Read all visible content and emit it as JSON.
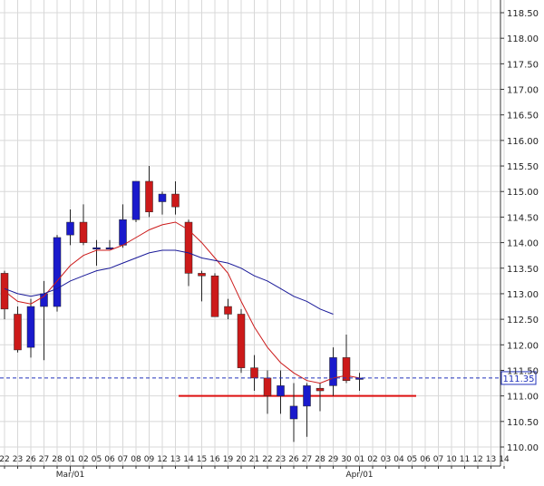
{
  "chart_data": {
    "type": "candlestick",
    "ylim": [
      110.0,
      118.75
    ],
    "y_ticks": [
      "110.00",
      "110.50",
      "111.00",
      "111.50",
      "112.00",
      "112.50",
      "113.00",
      "113.50",
      "114.00",
      "114.50",
      "115.00",
      "115.50",
      "116.00",
      "116.50",
      "117.00",
      "117.50",
      "118.00",
      "118.50"
    ],
    "x_ticks": [
      "22",
      "23",
      "26",
      "27",
      "28",
      "01",
      "02",
      "05",
      "06",
      "07",
      "08",
      "09",
      "12",
      "13",
      "14",
      "15",
      "16",
      "19",
      "20",
      "21",
      "22",
      "23",
      "26",
      "27",
      "28",
      "29",
      "30",
      "01",
      "02",
      "03",
      "04",
      "05",
      "06",
      "07",
      "10",
      "11",
      "12",
      "13",
      "14"
    ],
    "month_labels": [
      "Mar/01",
      "Apr/01"
    ],
    "last_price": "111.35",
    "support_level": 111.0,
    "candles": [
      {
        "date": "Feb 22",
        "open": 113.4,
        "high": 113.45,
        "low": 112.5,
        "close": 112.7
      },
      {
        "date": "Feb 23",
        "open": 112.6,
        "high": 112.75,
        "low": 111.85,
        "close": 111.9
      },
      {
        "date": "Feb 26",
        "open": 111.95,
        "high": 112.9,
        "low": 111.75,
        "close": 112.75
      },
      {
        "date": "Feb 27",
        "open": 112.75,
        "high": 113.25,
        "low": 111.7,
        "close": 113.0
      },
      {
        "date": "Feb 28",
        "open": 112.75,
        "high": 114.15,
        "low": 112.65,
        "close": 114.1
      },
      {
        "date": "Mar 01",
        "open": 114.15,
        "high": 114.65,
        "low": 113.95,
        "close": 114.4
      },
      {
        "date": "Mar 02",
        "open": 114.4,
        "high": 114.75,
        "low": 113.95,
        "close": 114.0
      },
      {
        "date": "Mar 05",
        "open": 113.9,
        "high": 114.05,
        "low": 113.55,
        "close": 113.9
      },
      {
        "date": "Mar 06",
        "open": 113.9,
        "high": 114.05,
        "low": 113.9,
        "close": 113.9
      },
      {
        "date": "Mar 07",
        "open": 113.95,
        "high": 114.75,
        "low": 113.9,
        "close": 114.45
      },
      {
        "date": "Mar 08",
        "open": 114.45,
        "high": 115.2,
        "low": 114.4,
        "close": 115.2
      },
      {
        "date": "Mar 09",
        "open": 115.2,
        "high": 115.5,
        "low": 114.5,
        "close": 114.6
      },
      {
        "date": "Mar 12",
        "open": 114.8,
        "high": 115.0,
        "low": 114.55,
        "close": 114.95
      },
      {
        "date": "Mar 13",
        "open": 114.95,
        "high": 115.2,
        "low": 114.55,
        "close": 114.7
      },
      {
        "date": "Mar 14",
        "open": 114.4,
        "high": 114.45,
        "low": 113.15,
        "close": 113.4
      },
      {
        "date": "Mar 15",
        "open": 113.4,
        "high": 113.45,
        "low": 112.85,
        "close": 113.35
      },
      {
        "date": "Mar 16",
        "open": 113.35,
        "high": 113.4,
        "low": 112.55,
        "close": 112.55
      },
      {
        "date": "Mar 19",
        "open": 112.75,
        "high": 112.9,
        "low": 112.5,
        "close": 112.6
      },
      {
        "date": "Mar 20",
        "open": 112.6,
        "high": 112.7,
        "low": 111.45,
        "close": 111.55
      },
      {
        "date": "Mar 21",
        "open": 111.55,
        "high": 111.8,
        "low": 111.1,
        "close": 111.35
      },
      {
        "date": "Mar 22",
        "open": 111.35,
        "high": 111.5,
        "low": 110.65,
        "close": 111.0
      },
      {
        "date": "Mar 23",
        "open": 111.0,
        "high": 111.5,
        "low": 110.65,
        "close": 111.2
      },
      {
        "date": "Mar 26",
        "open": 110.55,
        "high": 111.25,
        "low": 110.1,
        "close": 110.8
      },
      {
        "date": "Mar 27",
        "open": 110.8,
        "high": 111.25,
        "low": 110.2,
        "close": 111.2
      },
      {
        "date": "Mar 28",
        "open": 111.15,
        "high": 111.25,
        "low": 110.7,
        "close": 111.1
      },
      {
        "date": "Mar 29",
        "open": 111.2,
        "high": 111.95,
        "low": 111.0,
        "close": 111.75
      },
      {
        "date": "Mar 30",
        "open": 111.75,
        "high": 112.2,
        "low": 111.25,
        "close": 111.3
      },
      {
        "date": "Apr 01",
        "open": 111.35,
        "high": 111.45,
        "low": 111.1,
        "close": 111.35
      }
    ],
    "series": [
      {
        "values": [
          113.05,
          112.85,
          112.8,
          112.95,
          113.25,
          113.55,
          113.75,
          113.85,
          113.85,
          113.95,
          114.1,
          114.25,
          114.35,
          114.4,
          114.25,
          114.0,
          113.7,
          113.4,
          112.85,
          112.35,
          111.95,
          111.65,
          111.45,
          111.3,
          111.25,
          111.35,
          111.4,
          111.35
        ]
      },
      {
        "values": [
          113.1,
          113.0,
          112.95,
          113.0,
          113.1,
          113.25,
          113.35,
          113.45,
          113.5,
          113.6,
          113.7,
          113.8,
          113.85,
          113.85,
          113.8,
          113.7,
          113.65,
          113.6,
          113.5,
          113.35,
          113.25,
          113.1,
          112.95,
          112.85,
          112.7,
          112.6
        ]
      }
    ],
    "colors": {
      "up": "#1a1acc",
      "down": "#cc1a1a",
      "ma_fast": "#cc1a1a",
      "ma_slow": "#1a1a99",
      "support": "#dd1111",
      "last_price_line": "#2233bb",
      "grid": "#d8d8d8"
    }
  }
}
